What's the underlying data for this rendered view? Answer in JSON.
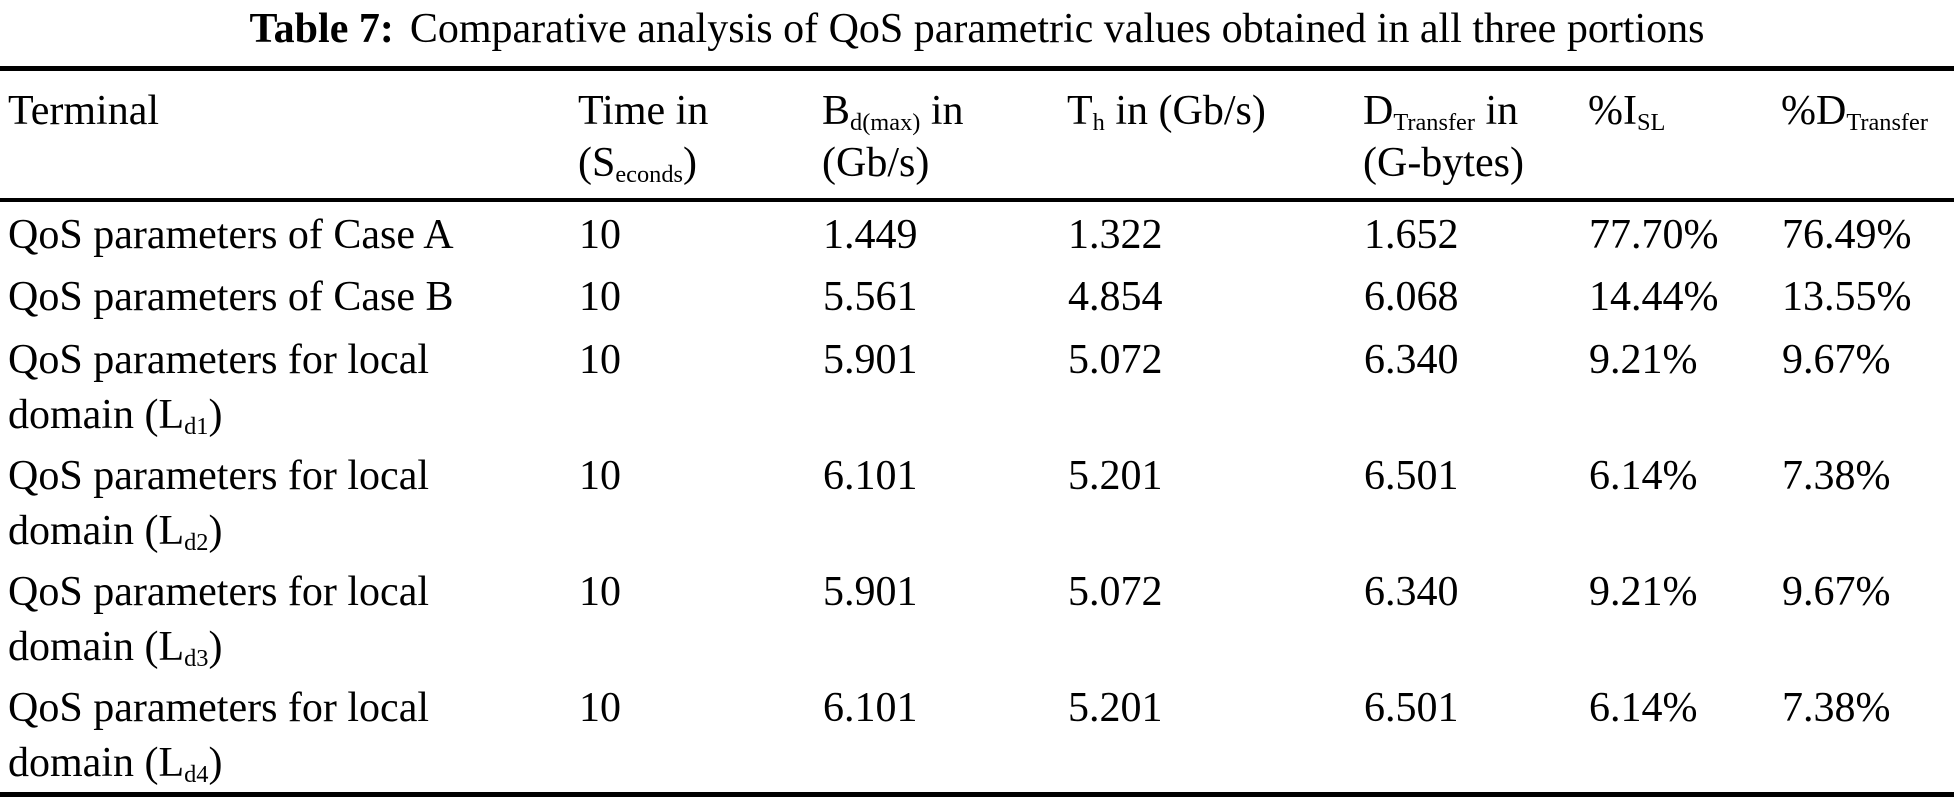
{
  "caption": {
    "label": "Table 7:",
    "text": "Comparative analysis of QoS parametric values obtained in all three portions"
  },
  "colors": {
    "background": "#ffffff",
    "text": "#000000",
    "rule": "#000000"
  },
  "header": {
    "terminal": {
      "main": "Terminal"
    },
    "time": {
      "main": "Time in",
      "l2pre": "(S",
      "l2sub": "econds",
      "l2post": ")"
    },
    "bdmax": {
      "pre": "B",
      "sub": "d(max)",
      "post": " in",
      "line2": "(Gb/s)"
    },
    "th": {
      "pre": "T",
      "sub": "h",
      "post": " in (Gb/s)"
    },
    "dtransfer": {
      "pre": "D",
      "sub": "Transfer",
      "post": " in",
      "line2": "(G-bytes)"
    },
    "isl": {
      "pre": "%I",
      "sub": "SL"
    },
    "dtp": {
      "pre": "%D",
      "sub": "Transfer"
    }
  },
  "value_column_keys": [
    "time",
    "bd-max",
    "t-h",
    "d-transfer",
    "i-sl-pct",
    "d-transfer-pct"
  ],
  "rows": [
    {
      "terminal": "QoS parameters of Case A",
      "values": [
        "10",
        "1.449",
        "1.322",
        "1.652",
        "77.70%",
        "76.49%"
      ]
    },
    {
      "terminal": "QoS parameters of Case B",
      "values": [
        "10",
        "5.561",
        "4.854",
        "6.068",
        "14.44%",
        "13.55%"
      ]
    },
    {
      "terminal": "QoS parameters for local",
      "line2": {
        "pre": "domain (L",
        "sub": "d1",
        "post": ")"
      },
      "values": [
        "10",
        "5.901",
        "5.072",
        "6.340",
        "9.21%",
        "9.67%"
      ]
    },
    {
      "terminal": "QoS parameters for local",
      "line2": {
        "pre": "domain (L",
        "sub": "d2",
        "post": ")"
      },
      "values": [
        "10",
        "6.101",
        "5.201",
        "6.501",
        "6.14%",
        "7.38%"
      ]
    },
    {
      "terminal": "QoS parameters for local",
      "line2": {
        "pre": "domain (L",
        "sub": "d3",
        "post": ")"
      },
      "values": [
        "10",
        "5.901",
        "5.072",
        "6.340",
        "9.21%",
        "9.67%"
      ]
    },
    {
      "terminal": "QoS parameters for local",
      "line2": {
        "pre": "domain (L",
        "sub": "d4",
        "post": ")"
      },
      "values": [
        "10",
        "6.101",
        "5.201",
        "6.501",
        "6.14%",
        "7.38%"
      ]
    }
  ]
}
